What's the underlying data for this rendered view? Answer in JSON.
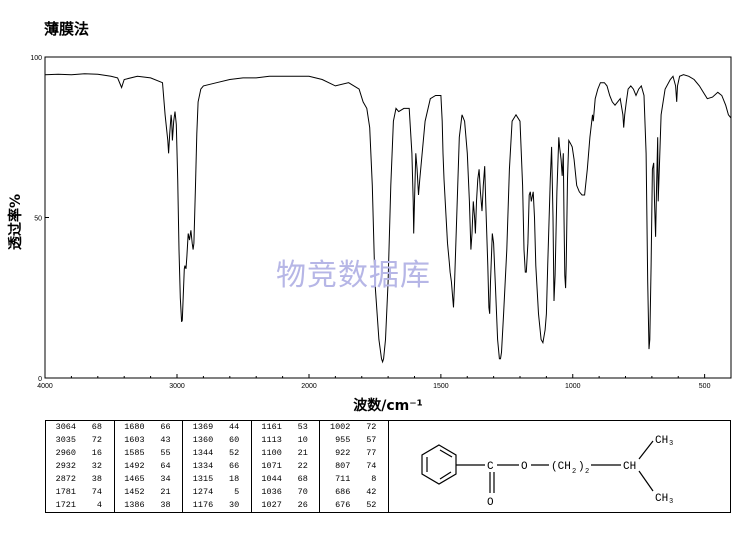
{
  "header": {
    "title": "薄膜法"
  },
  "watermark": "物竞数据库",
  "chart_data": {
    "type": "line",
    "xlabel": "波数/cm⁻¹",
    "ylabel": "透过率%",
    "xlim": [
      4000,
      400
    ],
    "ylim": [
      0,
      100
    ],
    "x_ticks": [
      4000,
      3000,
      2000,
      1500,
      1000,
      500
    ],
    "y_ticks": [
      0,
      50,
      100
    ],
    "grid": false,
    "series": [
      {
        "color": "#000000",
        "points": [
          [
            4000,
            94.5
          ],
          [
            3900,
            94.6
          ],
          [
            3800,
            94.5
          ],
          [
            3700,
            94.8
          ],
          [
            3600,
            94.6
          ],
          [
            3500,
            94
          ],
          [
            3450,
            93.5
          ],
          [
            3420,
            90.5
          ],
          [
            3400,
            93
          ],
          [
            3300,
            94
          ],
          [
            3200,
            93.5
          ],
          [
            3110,
            92
          ],
          [
            3090,
            82
          ],
          [
            3070,
            74
          ],
          [
            3064,
            70
          ],
          [
            3055,
            76
          ],
          [
            3045,
            82
          ],
          [
            3040,
            80
          ],
          [
            3035,
            74
          ],
          [
            3025,
            80
          ],
          [
            3015,
            83
          ],
          [
            3005,
            79
          ],
          [
            2995,
            62
          ],
          [
            2985,
            40
          ],
          [
            2975,
            25
          ],
          [
            2965,
            17.5
          ],
          [
            2960,
            18
          ],
          [
            2952,
            26
          ],
          [
            2945,
            34
          ],
          [
            2940,
            35
          ],
          [
            2932,
            34
          ],
          [
            2925,
            38
          ],
          [
            2915,
            45
          ],
          [
            2905,
            43
          ],
          [
            2895,
            46
          ],
          [
            2885,
            42
          ],
          [
            2878,
            40
          ],
          [
            2872,
            42
          ],
          [
            2860,
            60
          ],
          [
            2850,
            76
          ],
          [
            2840,
            86
          ],
          [
            2820,
            90
          ],
          [
            2800,
            91
          ],
          [
            2700,
            92
          ],
          [
            2600,
            93
          ],
          [
            2500,
            93.5
          ],
          [
            2400,
            93.5
          ],
          [
            2300,
            94
          ],
          [
            2200,
            94
          ],
          [
            2100,
            94
          ],
          [
            2000,
            94
          ],
          [
            1950,
            93
          ],
          [
            1900,
            91
          ],
          [
            1850,
            92
          ],
          [
            1810,
            90
          ],
          [
            1795,
            86
          ],
          [
            1781,
            84
          ],
          [
            1770,
            78
          ],
          [
            1760,
            60
          ],
          [
            1750,
            30
          ],
          [
            1735,
            12
          ],
          [
            1725,
            6
          ],
          [
            1721,
            5
          ],
          [
            1717,
            6
          ],
          [
            1710,
            12
          ],
          [
            1700,
            30
          ],
          [
            1690,
            60
          ],
          [
            1680,
            80
          ],
          [
            1670,
            84
          ],
          [
            1660,
            83
          ],
          [
            1640,
            84
          ],
          [
            1620,
            84
          ],
          [
            1610,
            70
          ],
          [
            1605,
            55
          ],
          [
            1603,
            45
          ],
          [
            1600,
            55
          ],
          [
            1595,
            70
          ],
          [
            1590,
            65
          ],
          [
            1585,
            57
          ],
          [
            1580,
            62
          ],
          [
            1560,
            80
          ],
          [
            1540,
            87
          ],
          [
            1520,
            88
          ],
          [
            1500,
            88
          ],
          [
            1495,
            80
          ],
          [
            1492,
            70
          ],
          [
            1488,
            62
          ],
          [
            1480,
            50
          ],
          [
            1475,
            42
          ],
          [
            1468,
            36
          ],
          [
            1465,
            33
          ],
          [
            1460,
            30
          ],
          [
            1455,
            25
          ],
          [
            1452,
            22
          ],
          [
            1448,
            30
          ],
          [
            1440,
            50
          ],
          [
            1430,
            75
          ],
          [
            1420,
            82
          ],
          [
            1410,
            80
          ],
          [
            1400,
            70
          ],
          [
            1392,
            55
          ],
          [
            1386,
            40
          ],
          [
            1382,
            45
          ],
          [
            1377,
            55
          ],
          [
            1372,
            50
          ],
          [
            1369,
            45
          ],
          [
            1365,
            55
          ],
          [
            1360,
            62
          ],
          [
            1355,
            65
          ],
          [
            1350,
            58
          ],
          [
            1344,
            52
          ],
          [
            1339,
            60
          ],
          [
            1334,
            66
          ],
          [
            1330,
            55
          ],
          [
            1322,
            35
          ],
          [
            1318,
            22
          ],
          [
            1315,
            20
          ],
          [
            1312,
            30
          ],
          [
            1305,
            45
          ],
          [
            1300,
            42
          ],
          [
            1293,
            28
          ],
          [
            1285,
            12
          ],
          [
            1278,
            6
          ],
          [
            1274,
            6
          ],
          [
            1270,
            8
          ],
          [
            1262,
            20
          ],
          [
            1250,
            40
          ],
          [
            1240,
            65
          ],
          [
            1230,
            80
          ],
          [
            1215,
            82
          ],
          [
            1200,
            80
          ],
          [
            1190,
            60
          ],
          [
            1185,
            40
          ],
          [
            1180,
            33
          ],
          [
            1176,
            33
          ],
          [
            1170,
            42
          ],
          [
            1165,
            57
          ],
          [
            1161,
            58
          ],
          [
            1157,
            55
          ],
          [
            1150,
            58
          ],
          [
            1145,
            50
          ],
          [
            1140,
            35
          ],
          [
            1130,
            20
          ],
          [
            1120,
            12
          ],
          [
            1113,
            11
          ],
          [
            1105,
            15
          ],
          [
            1100,
            20
          ],
          [
            1095,
            35
          ],
          [
            1085,
            62
          ],
          [
            1080,
            72
          ],
          [
            1075,
            50
          ],
          [
            1071,
            24
          ],
          [
            1067,
            32
          ],
          [
            1060,
            58
          ],
          [
            1053,
            75
          ],
          [
            1050,
            72
          ],
          [
            1044,
            68
          ],
          [
            1040,
            63
          ],
          [
            1036,
            70
          ],
          [
            1033,
            50
          ],
          [
            1030,
            32
          ],
          [
            1027,
            28
          ],
          [
            1025,
            35
          ],
          [
            1020,
            62
          ],
          [
            1015,
            74
          ],
          [
            1008,
            73
          ],
          [
            1002,
            72
          ],
          [
            995,
            68
          ],
          [
            985,
            60
          ],
          [
            975,
            58
          ],
          [
            965,
            57
          ],
          [
            955,
            57
          ],
          [
            945,
            65
          ],
          [
            935,
            75
          ],
          [
            925,
            82
          ],
          [
            922,
            80
          ],
          [
            915,
            87
          ],
          [
            905,
            90
          ],
          [
            895,
            92
          ],
          [
            880,
            92
          ],
          [
            870,
            91
          ],
          [
            860,
            88
          ],
          [
            850,
            86
          ],
          [
            840,
            85
          ],
          [
            820,
            87
          ],
          [
            810,
            82
          ],
          [
            807,
            78
          ],
          [
            803,
            82
          ],
          [
            797,
            86
          ],
          [
            790,
            90
          ],
          [
            780,
            91
          ],
          [
            770,
            90
          ],
          [
            760,
            88
          ],
          [
            750,
            90
          ],
          [
            740,
            91
          ],
          [
            730,
            88
          ],
          [
            722,
            70
          ],
          [
            716,
            30
          ],
          [
            711,
            9
          ],
          [
            708,
            12
          ],
          [
            703,
            35
          ],
          [
            698,
            65
          ],
          [
            693,
            67
          ],
          [
            690,
            55
          ],
          [
            686,
            44
          ],
          [
            682,
            60
          ],
          [
            678,
            75
          ],
          [
            676,
            55
          ],
          [
            672,
            65
          ],
          [
            665,
            82
          ],
          [
            650,
            90
          ],
          [
            630,
            93
          ],
          [
            620,
            94
          ],
          [
            610,
            91
          ],
          [
            606,
            86
          ],
          [
            603,
            91
          ],
          [
            595,
            94
          ],
          [
            580,
            94.5
          ],
          [
            560,
            94
          ],
          [
            540,
            93
          ],
          [
            520,
            91
          ],
          [
            505,
            89
          ],
          [
            490,
            87
          ],
          [
            470,
            87.5
          ],
          [
            450,
            89
          ],
          [
            435,
            88
          ],
          [
            420,
            85
          ],
          [
            410,
            82
          ],
          [
            400,
            81
          ]
        ]
      }
    ]
  },
  "peaks": [
    [
      [
        "3064",
        "68"
      ],
      [
        "3035",
        "72"
      ],
      [
        "2960",
        "16"
      ],
      [
        "2932",
        "32"
      ],
      [
        "2872",
        "38"
      ],
      [
        "1781",
        "74"
      ],
      [
        "1721",
        "4"
      ]
    ],
    [
      [
        "1680",
        "66"
      ],
      [
        "1603",
        "43"
      ],
      [
        "1585",
        "55"
      ],
      [
        "1492",
        "64"
      ],
      [
        "1465",
        "34"
      ],
      [
        "1452",
        "21"
      ],
      [
        "1386",
        "38"
      ]
    ],
    [
      [
        "1369",
        "44"
      ],
      [
        "1360",
        "60"
      ],
      [
        "1344",
        "52"
      ],
      [
        "1334",
        "66"
      ],
      [
        "1315",
        "18"
      ],
      [
        "1274",
        "5"
      ],
      [
        "1176",
        "30"
      ]
    ],
    [
      [
        "1161",
        "53"
      ],
      [
        "1113",
        "10"
      ],
      [
        "1100",
        "21"
      ],
      [
        "1071",
        "22"
      ],
      [
        "1044",
        "68"
      ],
      [
        "1036",
        "70"
      ],
      [
        "1027",
        "26"
      ]
    ],
    [
      [
        "1002",
        "72"
      ],
      [
        "955",
        "57"
      ],
      [
        "922",
        "77"
      ],
      [
        "807",
        "74"
      ],
      [
        "711",
        "8"
      ],
      [
        "686",
        "42"
      ],
      [
        "676",
        "52"
      ]
    ]
  ],
  "structure": {
    "ch3_top": "CH",
    "ch3_bottom": "CH",
    "subscript_3": "3",
    "carbonyl_c": "C",
    "ester_o": "O",
    "carbonyl_o": "O",
    "chain": "(CH",
    "chain_close": ")",
    "chain_sub_2": "2",
    "chain_sub_n": "2",
    "ch_branch": "CH"
  }
}
